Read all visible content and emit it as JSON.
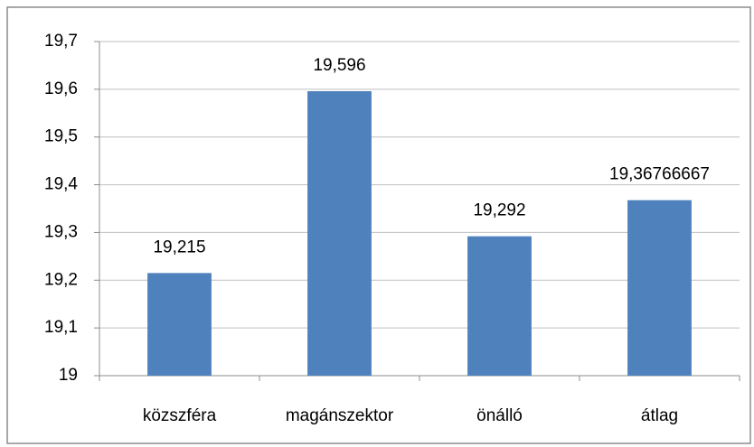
{
  "chart_data": {
    "type": "bar",
    "categories": [
      "közszféra",
      "magánszektor",
      "önálló",
      "átlag"
    ],
    "values": [
      19.215,
      19.596,
      19.292,
      19.36766667
    ],
    "value_labels": [
      "19,215",
      "19,596",
      "19,292",
      "19,36766667"
    ],
    "color": "#4f81bd",
    "ylim": [
      19,
      19.7
    ],
    "yticks": [
      19,
      {
        "value": 19.1,
        "label": "19,1"
      },
      {
        "value": 19.2,
        "label": "19,2"
      },
      {
        "value": 19.3,
        "label": "19,3"
      },
      {
        "value": 19.4,
        "label": "19,4"
      },
      {
        "value": 19.5,
        "label": "19,5"
      },
      {
        "value": 19.6,
        "label": "19,6"
      },
      {
        "value": 19.7,
        "label": "19,7"
      }
    ],
    "grid": true
  }
}
